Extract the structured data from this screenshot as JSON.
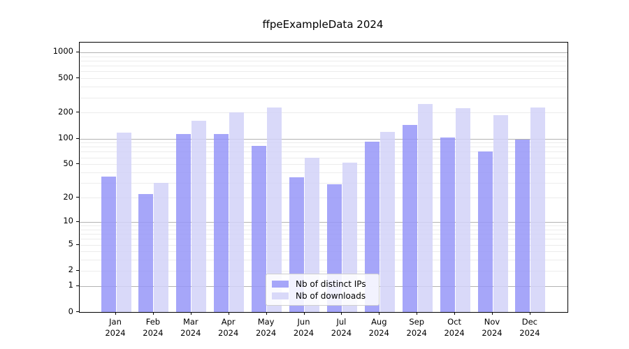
{
  "title": "ffpeExampleData 2024",
  "chart_data": {
    "type": "bar",
    "title": "ffpeExampleData 2024",
    "x_tick_labels": [
      [
        "Jan",
        "2024"
      ],
      [
        "Feb",
        "2024"
      ],
      [
        "Mar",
        "2024"
      ],
      [
        "Apr",
        "2024"
      ],
      [
        "May",
        "2024"
      ],
      [
        "Jun",
        "2024"
      ],
      [
        "Jul",
        "2024"
      ],
      [
        "Aug",
        "2024"
      ],
      [
        "Sep",
        "2024"
      ],
      [
        "Oct",
        "2024"
      ],
      [
        "Nov",
        "2024"
      ],
      [
        "Dec",
        "2024"
      ]
    ],
    "series": [
      {
        "name": "Nb of distinct IPs",
        "color": "#9696f8",
        "values": [
          36,
          22,
          114,
          114,
          82,
          35,
          29,
          92,
          145,
          102,
          71,
          98
        ]
      },
      {
        "name": "Nb of downloads",
        "color": "#d2d2f8",
        "values": [
          117,
          30,
          160,
          200,
          230,
          60,
          52,
          119,
          252,
          226,
          186,
          230
        ]
      }
    ],
    "y_ticks": [
      0,
      1,
      2,
      5,
      10,
      20,
      50,
      100,
      200,
      500,
      1000
    ],
    "y_minor_gridlines": [
      2,
      3,
      4,
      5,
      6,
      7,
      8,
      9,
      20,
      30,
      40,
      50,
      60,
      70,
      80,
      90,
      200,
      300,
      400,
      500,
      600,
      700,
      800,
      900
    ],
    "y_major_gridlines": [
      1,
      10,
      100,
      1000
    ],
    "y_scale": "log10(1+value)",
    "ylim": [
      0,
      1290
    ],
    "grid": "both",
    "legend_position": "bottom-center",
    "colors": {
      "bar_distinct_ips": "#9696f8",
      "bar_downloads": "#d2d2f8",
      "grid_minor": "#ececec",
      "grid_major": "#b3b3b3",
      "axis": "#000000"
    }
  }
}
